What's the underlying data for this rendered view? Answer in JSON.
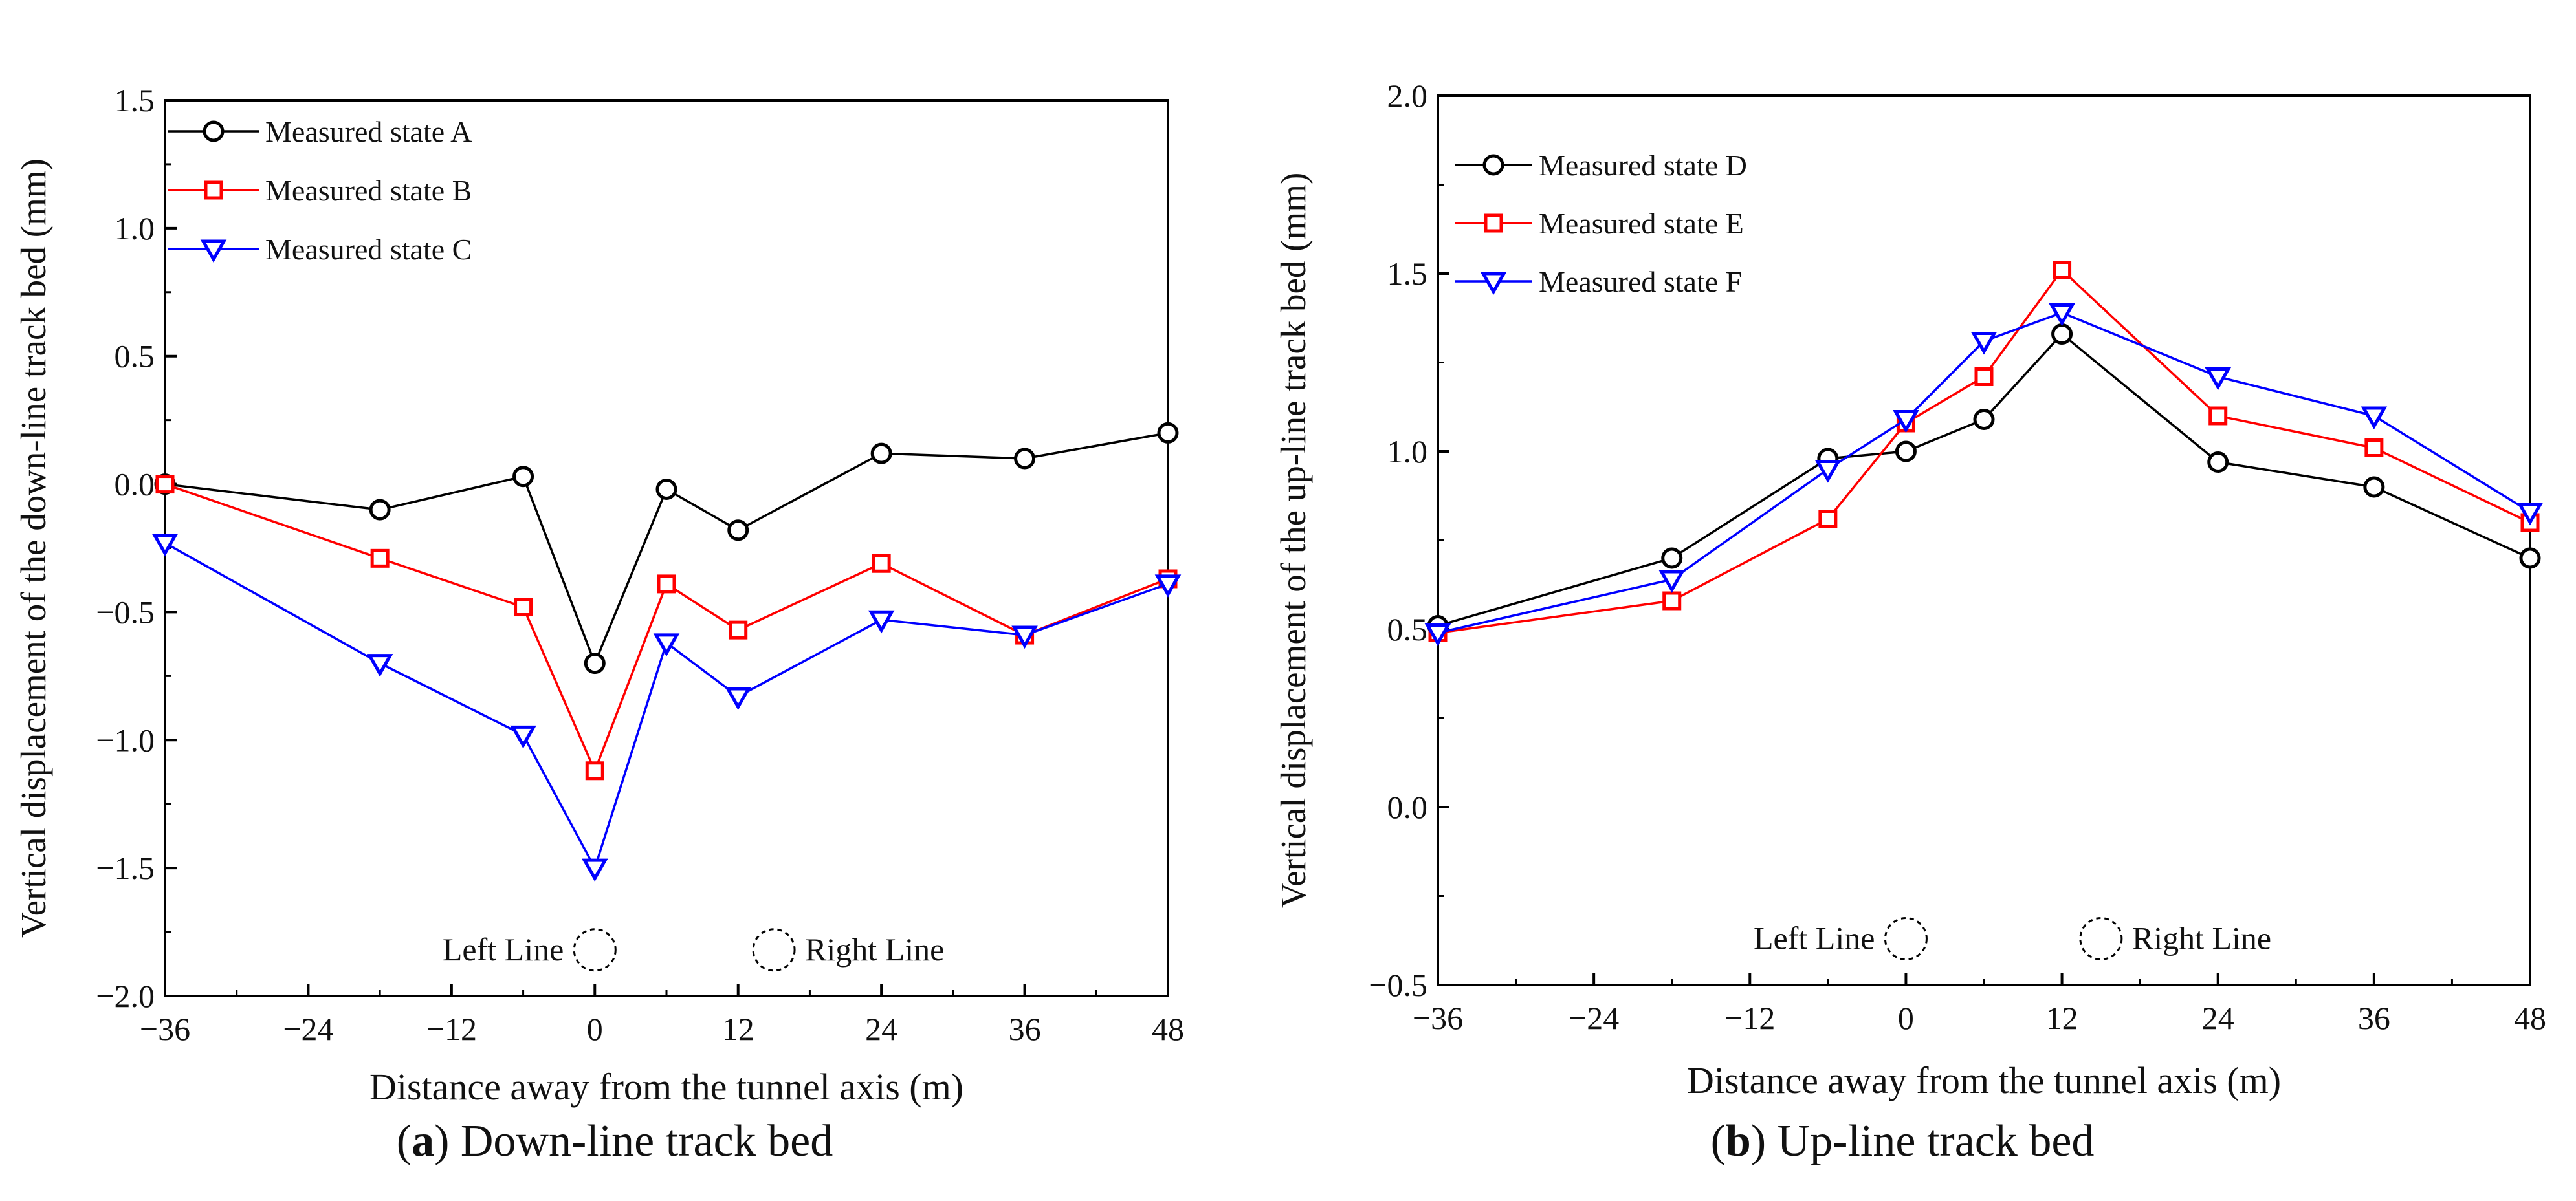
{
  "chart_data": [
    {
      "type": "line",
      "panel_letter": "a",
      "caption": "Down-line track bed",
      "xlabel": "Distance away from the tunnel axis (m)",
      "ylabel": "Vertical displacement of the down-line track bed (mm)",
      "xlim": [
        -36,
        48
      ],
      "ylim": [
        -2.0,
        1.5
      ],
      "xticks": [
        -36,
        -24,
        -12,
        0,
        12,
        24,
        36,
        48
      ],
      "yticks": [
        -2.0,
        -1.5,
        -1.0,
        -0.5,
        0.0,
        0.5,
        1.0,
        1.5
      ],
      "x": [
        -36,
        -18,
        -6,
        0,
        6,
        12,
        24,
        36,
        48
      ],
      "series": [
        {
          "name": "Measured state A",
          "marker": "circle",
          "color": "#000000",
          "values": [
            0.0,
            -0.1,
            0.03,
            -0.7,
            -0.02,
            -0.18,
            0.12,
            0.1,
            0.2
          ]
        },
        {
          "name": "Measured state B",
          "marker": "square",
          "color": "#ff0000",
          "values": [
            0.0,
            -0.29,
            -0.48,
            -1.12,
            -0.39,
            -0.57,
            -0.31,
            -0.59,
            -0.37
          ]
        },
        {
          "name": "Measured state C",
          "marker": "triangle-down",
          "color": "#0000ff",
          "values": [
            -0.23,
            -0.7,
            -0.98,
            -1.5,
            -0.62,
            -0.83,
            -0.53,
            -0.59,
            -0.39
          ]
        }
      ],
      "annotations": [
        {
          "text": "Left Line",
          "x": 0,
          "y": -1.82
        },
        {
          "text": "Right Line",
          "x": 15,
          "y": -1.82
        }
      ]
    },
    {
      "type": "line",
      "panel_letter": "b",
      "caption": "Up-line track bed",
      "xlabel": "Distance away from the tunnel axis (m)",
      "ylabel": "Vertical displacement of the up-line track bed (mm)",
      "xlim": [
        -36,
        48
      ],
      "ylim": [
        -0.5,
        2.0
      ],
      "xticks": [
        -36,
        -24,
        -12,
        0,
        12,
        24,
        36,
        48
      ],
      "yticks": [
        -0.5,
        0.0,
        0.5,
        1.0,
        1.5,
        2.0
      ],
      "x": [
        -36,
        -18,
        -6,
        0,
        6,
        12,
        24,
        36,
        48
      ],
      "series": [
        {
          "name": "Measured state D",
          "marker": "circle",
          "color": "#000000",
          "values": [
            0.51,
            0.7,
            0.98,
            1.0,
            1.09,
            1.33,
            0.97,
            0.9,
            0.7
          ]
        },
        {
          "name": "Measured state E",
          "marker": "square",
          "color": "#ff0000",
          "values": [
            0.49,
            0.58,
            0.81,
            1.08,
            1.21,
            1.51,
            1.1,
            1.01,
            0.8
          ]
        },
        {
          "name": "Measured state F",
          "marker": "triangle-down",
          "color": "#0000ff",
          "values": [
            0.49,
            0.64,
            0.95,
            1.09,
            1.31,
            1.39,
            1.21,
            1.1,
            0.83
          ]
        }
      ],
      "annotations": [
        {
          "text": "Left Line",
          "x": 0,
          "y": -0.37
        },
        {
          "text": "Right Line",
          "x": 15,
          "y": -0.37
        }
      ]
    }
  ]
}
